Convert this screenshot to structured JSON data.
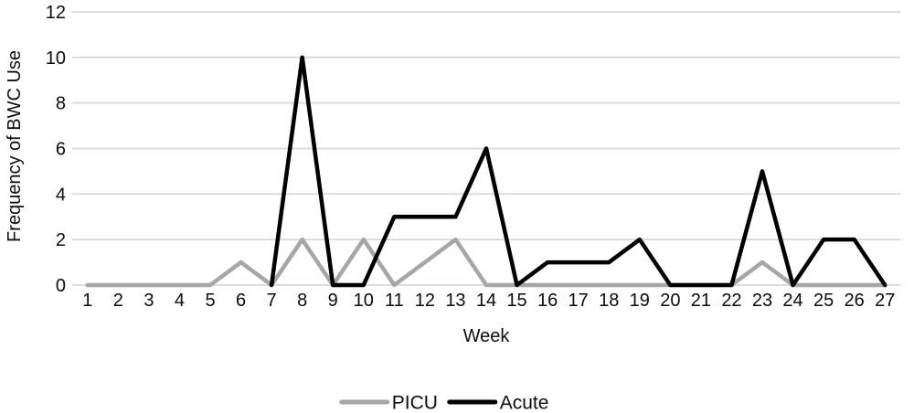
{
  "chart_data": {
    "type": "line",
    "title": "",
    "xlabel": "Week",
    "ylabel": "Frequency of BWC Use",
    "x": [
      1,
      2,
      3,
      4,
      5,
      6,
      7,
      8,
      9,
      10,
      11,
      12,
      13,
      14,
      15,
      16,
      17,
      18,
      19,
      20,
      21,
      22,
      23,
      24,
      25,
      26,
      27
    ],
    "ylim": [
      0,
      12
    ],
    "yticks": [
      0,
      2,
      4,
      6,
      8,
      10,
      12
    ],
    "grid": "horizontal",
    "gridline_color": "#d9d9d9",
    "background_color": "#ffffff",
    "text_color": "#0d0d0d",
    "legend_position": "bottom-center",
    "series": [
      {
        "name": "PICU",
        "color": "#a6a6a6",
        "values": [
          0,
          0,
          0,
          0,
          0,
          1,
          0,
          2,
          0,
          2,
          0,
          1,
          2,
          0,
          0,
          0,
          0,
          0,
          0,
          0,
          0,
          0,
          1,
          0,
          0,
          0,
          0
        ]
      },
      {
        "name": "Acute",
        "color": "#000000",
        "values": [
          null,
          null,
          null,
          null,
          null,
          null,
          0,
          10,
          0,
          0,
          3,
          3,
          3,
          6,
          0,
          1,
          1,
          1,
          2,
          0,
          0,
          0,
          5,
          0,
          2,
          2,
          0
        ]
      }
    ]
  }
}
